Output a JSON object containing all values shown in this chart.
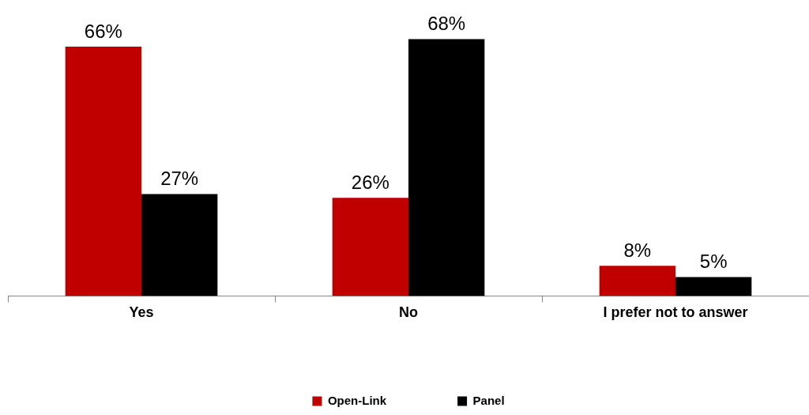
{
  "chart_data": {
    "type": "bar",
    "categories": [
      "Yes",
      "No",
      "I prefer not to answer"
    ],
    "series": [
      {
        "name": "Open-Link",
        "color": "#c00000",
        "values": [
          66,
          26,
          8
        ],
        "value_labels": [
          "66%",
          "26%",
          "8%"
        ]
      },
      {
        "name": "Panel",
        "color": "#000000",
        "values": [
          27,
          68,
          5
        ],
        "value_labels": [
          "27%",
          "68%",
          "5%"
        ]
      }
    ],
    "legend": "bottom",
    "grid": false
  }
}
